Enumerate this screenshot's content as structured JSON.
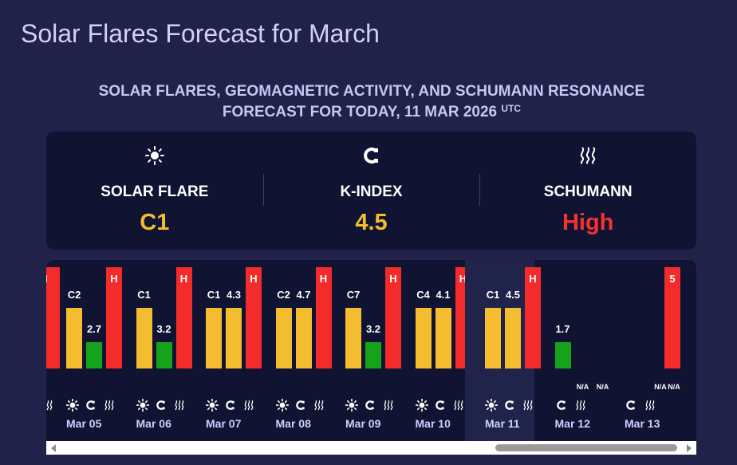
{
  "page": {
    "title": "Solar Flares Forecast for March",
    "subtitle_line1": "SOLAR FLARES, GEOMAGNETIC ACTIVITY, AND SCHUMANN RESONANCE",
    "subtitle_line2": "FORECAST FOR TODAY, 11 MAR 2026",
    "subtitle_sup": "UTC"
  },
  "summary": [
    {
      "label": "SOLAR FLARE",
      "value": "C1",
      "color": "#f4bd30",
      "icon": "sun-icon"
    },
    {
      "label": "K-INDEX",
      "value": "4.5",
      "color": "#f4bd30",
      "icon": "magnet-icon"
    },
    {
      "label": "SCHUMANN",
      "value": "High",
      "color": "#f53232",
      "icon": "wave-icon"
    }
  ],
  "colors": {
    "yellow": "#f4bd30",
    "green": "#15a31c",
    "red": "#f42b2b"
  },
  "partial_day": {
    "schumann": "H"
  },
  "days": [
    {
      "date": "Mar 05",
      "flare": "C2",
      "kp": "2.7",
      "schumann": "H",
      "flare_level": 0.6,
      "kp_level": 0.26,
      "schumann_level": 1.0,
      "today": false
    },
    {
      "date": "Mar 06",
      "flare": "C1",
      "kp": "3.2",
      "schumann": "H",
      "flare_level": 0.6,
      "kp_level": 0.26,
      "schumann_level": 1.0,
      "today": false
    },
    {
      "date": "Mar 07",
      "flare": "C1",
      "kp": "4.3",
      "schumann": "H",
      "flare_level": 0.6,
      "kp_level": 0.6,
      "schumann_level": 1.0,
      "today": false
    },
    {
      "date": "Mar 08",
      "flare": "C2",
      "kp": "4.7",
      "schumann": "H",
      "flare_level": 0.6,
      "kp_level": 0.6,
      "schumann_level": 1.0,
      "today": false
    },
    {
      "date": "Mar 09",
      "flare": "C7",
      "kp": "3.2",
      "schumann": "H",
      "flare_level": 0.6,
      "kp_level": 0.26,
      "schumann_level": 1.0,
      "today": false
    },
    {
      "date": "Mar 10",
      "flare": "C4",
      "kp": "4.1",
      "schumann": "H",
      "flare_level": 0.6,
      "kp_level": 0.6,
      "schumann_level": 1.0,
      "today": false
    },
    {
      "date": "Mar 11",
      "flare": "C1",
      "kp": "4.5",
      "schumann": "H",
      "flare_level": 0.6,
      "kp_level": 0.6,
      "schumann_level": 1.0,
      "today": true
    },
    {
      "date": "Mar 12",
      "flare": "",
      "kp": "1.7",
      "schumann": "",
      "flare_level": 0,
      "kp_level": 0.26,
      "schumann_level": 0,
      "kp_color": "green",
      "extra_labels": [
        "N/A",
        "N/A"
      ],
      "today": false
    },
    {
      "date": "Mar 13",
      "flare": "",
      "kp": "",
      "schumann": "",
      "top_label": "5",
      "flare_level": 0,
      "kp_level": 0,
      "schumann_level": 1.0,
      "extra_labels": [
        "N/A",
        "N/A"
      ],
      "today": false
    }
  ]
}
